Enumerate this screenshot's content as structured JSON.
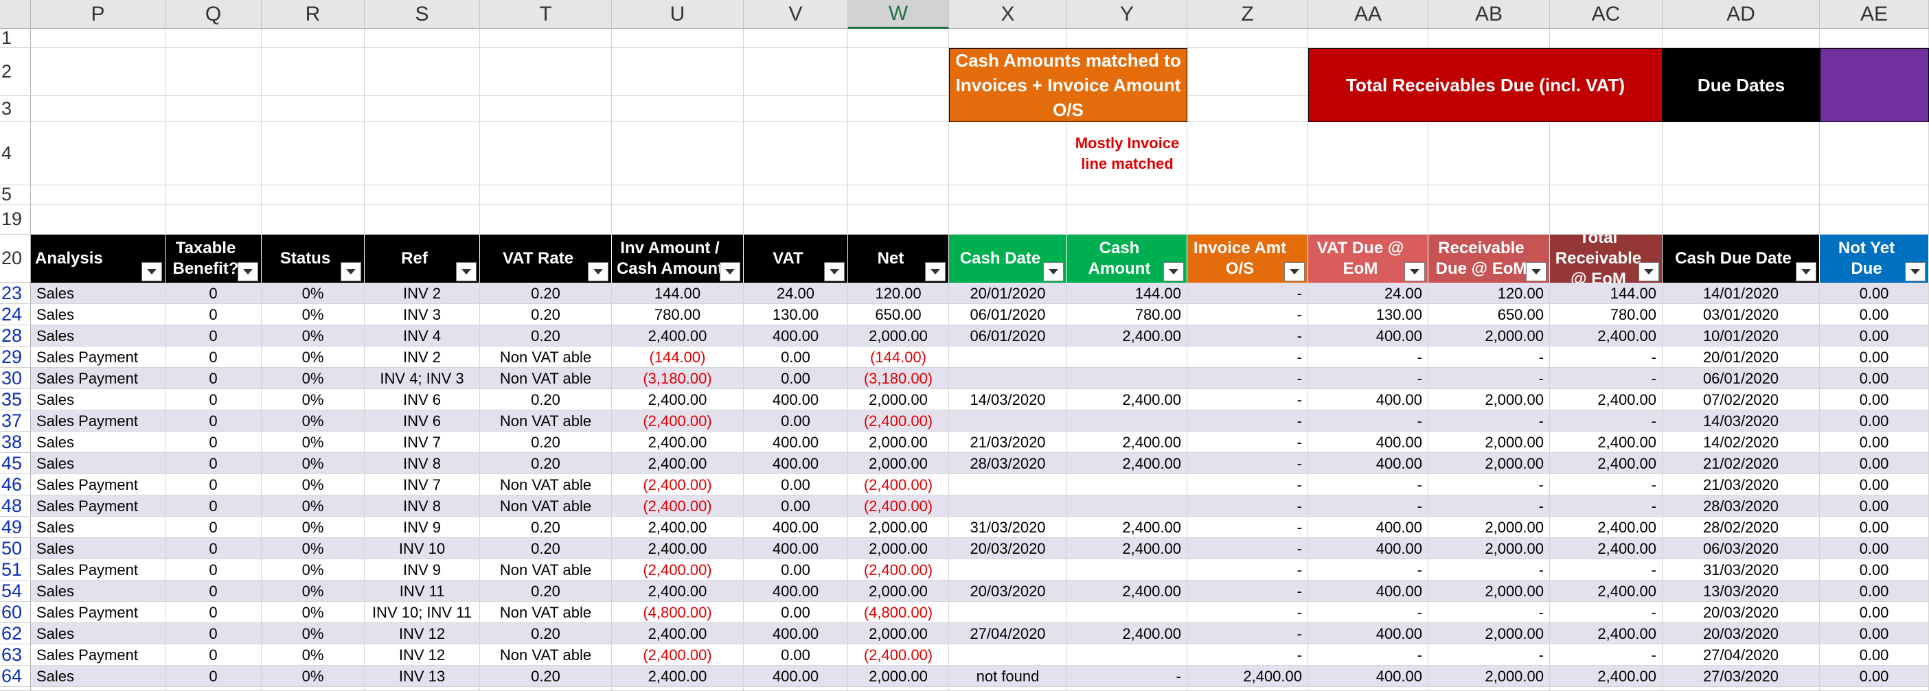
{
  "spreadsheet": {
    "column_headers": [
      "P",
      "Q",
      "R",
      "S",
      "T",
      "U",
      "V",
      "W",
      "X",
      "Y",
      "Z",
      "AA",
      "AB",
      "AC",
      "AD",
      "AE"
    ],
    "selected_column": "W",
    "top_row_numbers": [
      "1",
      "2",
      "3",
      "4",
      "5",
      "19",
      "20"
    ],
    "group_headers": [
      {
        "label": "Cash Amounts matched to Invoices + Invoice Amount O/S",
        "color": "#e46c0a"
      },
      {
        "label": "Total Receivables Due (incl. VAT)",
        "color": "#c00000"
      },
      {
        "label": "Due Dates",
        "color": "#000000"
      },
      {
        "label": "",
        "color": "#7030a0"
      }
    ],
    "note": {
      "text": "Mostly Invoice line matched",
      "color": "#e00000"
    },
    "table_headers": [
      {
        "label": "Analysis",
        "bg": "#000000"
      },
      {
        "label": "Taxable Benefit?",
        "bg": "#000000"
      },
      {
        "label": "Status",
        "bg": "#000000"
      },
      {
        "label": "Ref",
        "bg": "#000000"
      },
      {
        "label": "VAT Rate",
        "bg": "#000000"
      },
      {
        "label": "Inv Amount / Cash Amount",
        "bg": "#000000"
      },
      {
        "label": "VAT",
        "bg": "#000000"
      },
      {
        "label": "Net",
        "bg": "#000000"
      },
      {
        "label": "Cash Date",
        "bg": "#00b050"
      },
      {
        "label": "Cash Amount",
        "bg": "#00b050"
      },
      {
        "label": "Invoice Amt O/S",
        "bg": "#e46c0a"
      },
      {
        "label": "VAT Due @ EoM",
        "bg": "#da5d5d"
      },
      {
        "label": "Receivable Due @ EoM",
        "bg": "#c65454"
      },
      {
        "label": "Total Receivable @ EoM",
        "bg": "#963737"
      },
      {
        "label": "Cash Due Date",
        "bg": "#000000"
      },
      {
        "label": "Not Yet Due",
        "bg": "#0070c0"
      }
    ],
    "rows": [
      {
        "num": "23",
        "cells": [
          "Sales",
          "0",
          "0%",
          "INV 2",
          "0.20",
          "144.00",
          "24.00",
          "120.00",
          "20/01/2020",
          "144.00",
          "-",
          "24.00",
          "120.00",
          "144.00",
          "14/01/2020",
          "0.00"
        ]
      },
      {
        "num": "24",
        "cells": [
          "Sales",
          "0",
          "0%",
          "INV 3",
          "0.20",
          "780.00",
          "130.00",
          "650.00",
          "06/01/2020",
          "780.00",
          "-",
          "130.00",
          "650.00",
          "780.00",
          "03/01/2020",
          "0.00"
        ]
      },
      {
        "num": "28",
        "cells": [
          "Sales",
          "0",
          "0%",
          "INV 4",
          "0.20",
          "2,400.00",
          "400.00",
          "2,000.00",
          "06/01/2020",
          "2,400.00",
          "-",
          "400.00",
          "2,000.00",
          "2,400.00",
          "10/01/2020",
          "0.00"
        ]
      },
      {
        "num": "29",
        "cells": [
          "Sales Payment",
          "0",
          "0%",
          "INV 2",
          "Non VAT able",
          "(144.00)",
          "0.00",
          "(144.00)",
          "",
          "",
          "-",
          "-",
          "-",
          "-",
          "20/01/2020",
          "0.00"
        ]
      },
      {
        "num": "30",
        "cells": [
          "Sales Payment",
          "0",
          "0%",
          "INV 4; INV 3",
          "Non VAT able",
          "(3,180.00)",
          "0.00",
          "(3,180.00)",
          "",
          "",
          "-",
          "-",
          "-",
          "-",
          "06/01/2020",
          "0.00"
        ]
      },
      {
        "num": "35",
        "cells": [
          "Sales",
          "0",
          "0%",
          "INV 6",
          "0.20",
          "2,400.00",
          "400.00",
          "2,000.00",
          "14/03/2020",
          "2,400.00",
          "-",
          "400.00",
          "2,000.00",
          "2,400.00",
          "07/02/2020",
          "0.00"
        ]
      },
      {
        "num": "37",
        "cells": [
          "Sales Payment",
          "0",
          "0%",
          "INV 6",
          "Non VAT able",
          "(2,400.00)",
          "0.00",
          "(2,400.00)",
          "",
          "",
          "-",
          "-",
          "-",
          "-",
          "14/03/2020",
          "0.00"
        ]
      },
      {
        "num": "38",
        "cells": [
          "Sales",
          "0",
          "0%",
          "INV 7",
          "0.20",
          "2,400.00",
          "400.00",
          "2,000.00",
          "21/03/2020",
          "2,400.00",
          "-",
          "400.00",
          "2,000.00",
          "2,400.00",
          "14/02/2020",
          "0.00"
        ]
      },
      {
        "num": "45",
        "cells": [
          "Sales",
          "0",
          "0%",
          "INV 8",
          "0.20",
          "2,400.00",
          "400.00",
          "2,000.00",
          "28/03/2020",
          "2,400.00",
          "-",
          "400.00",
          "2,000.00",
          "2,400.00",
          "21/02/2020",
          "0.00"
        ]
      },
      {
        "num": "46",
        "cells": [
          "Sales Payment",
          "0",
          "0%",
          "INV 7",
          "Non VAT able",
          "(2,400.00)",
          "0.00",
          "(2,400.00)",
          "",
          "",
          "-",
          "-",
          "-",
          "-",
          "21/03/2020",
          "0.00"
        ]
      },
      {
        "num": "48",
        "cells": [
          "Sales Payment",
          "0",
          "0%",
          "INV 8",
          "Non VAT able",
          "(2,400.00)",
          "0.00",
          "(2,400.00)",
          "",
          "",
          "-",
          "-",
          "-",
          "-",
          "28/03/2020",
          "0.00"
        ]
      },
      {
        "num": "49",
        "cells": [
          "Sales",
          "0",
          "0%",
          "INV 9",
          "0.20",
          "2,400.00",
          "400.00",
          "2,000.00",
          "31/03/2020",
          "2,400.00",
          "-",
          "400.00",
          "2,000.00",
          "2,400.00",
          "28/02/2020",
          "0.00"
        ]
      },
      {
        "num": "50",
        "cells": [
          "Sales",
          "0",
          "0%",
          "INV 10",
          "0.20",
          "2,400.00",
          "400.00",
          "2,000.00",
          "20/03/2020",
          "2,400.00",
          "-",
          "400.00",
          "2,000.00",
          "2,400.00",
          "06/03/2020",
          "0.00"
        ]
      },
      {
        "num": "51",
        "cells": [
          "Sales Payment",
          "0",
          "0%",
          "INV 9",
          "Non VAT able",
          "(2,400.00)",
          "0.00",
          "(2,400.00)",
          "",
          "",
          "-",
          "-",
          "-",
          "-",
          "31/03/2020",
          "0.00"
        ]
      },
      {
        "num": "54",
        "cells": [
          "Sales",
          "0",
          "0%",
          "INV 11",
          "0.20",
          "2,400.00",
          "400.00",
          "2,000.00",
          "20/03/2020",
          "2,400.00",
          "-",
          "400.00",
          "2,000.00",
          "2,400.00",
          "13/03/2020",
          "0.00"
        ]
      },
      {
        "num": "60",
        "cells": [
          "Sales Payment",
          "0",
          "0%",
          "INV 10; INV 11",
          "Non VAT able",
          "(4,800.00)",
          "0.00",
          "(4,800.00)",
          "",
          "",
          "-",
          "-",
          "-",
          "-",
          "20/03/2020",
          "0.00"
        ]
      },
      {
        "num": "62",
        "cells": [
          "Sales",
          "0",
          "0%",
          "INV 12",
          "0.20",
          "2,400.00",
          "400.00",
          "2,000.00",
          "27/04/2020",
          "2,400.00",
          "-",
          "400.00",
          "2,000.00",
          "2,400.00",
          "20/03/2020",
          "0.00"
        ]
      },
      {
        "num": "63",
        "cells": [
          "Sales Payment",
          "0",
          "0%",
          "INV 12",
          "Non VAT able",
          "(2,400.00)",
          "0.00",
          "(2,400.00)",
          "",
          "",
          "-",
          "-",
          "-",
          "-",
          "27/04/2020",
          "0.00"
        ]
      },
      {
        "num": "64",
        "cells": [
          "Sales",
          "0",
          "0%",
          "INV 13",
          "0.20",
          "2,400.00",
          "400.00",
          "2,000.00",
          "not found",
          "-",
          "2,400.00",
          "400.00",
          "2,000.00",
          "2,400.00",
          "27/03/2020",
          "0.00"
        ]
      }
    ],
    "negative_color": "#e00000",
    "stripe_color": "#e4e1ee"
  }
}
